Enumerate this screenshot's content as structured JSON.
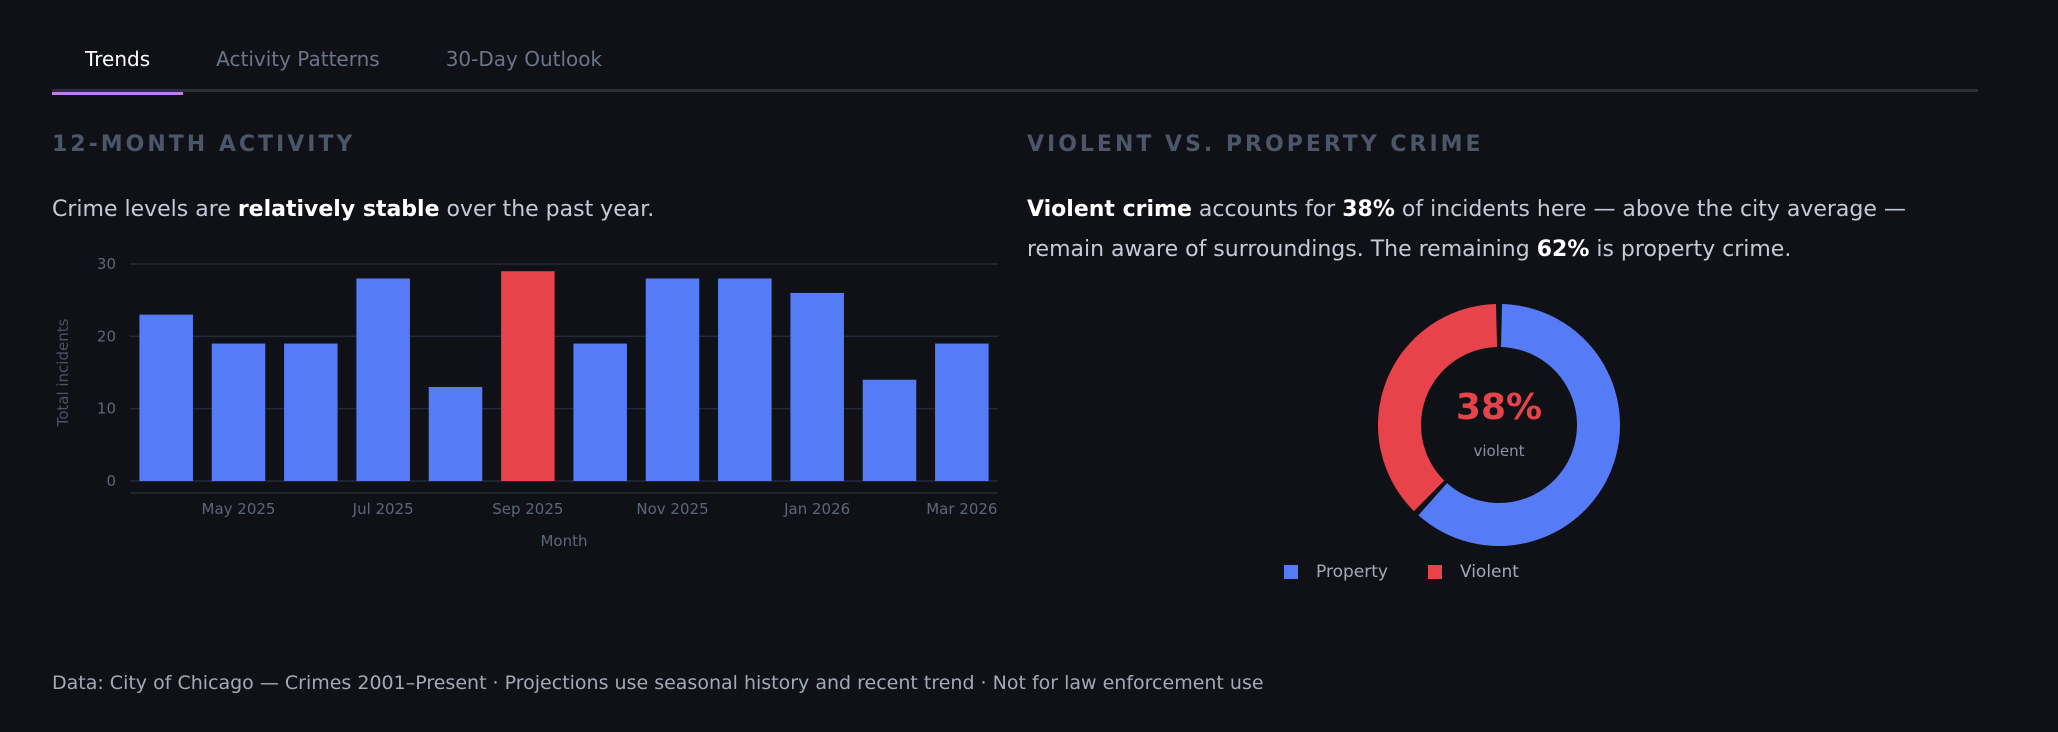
{
  "tabs": [
    {
      "label": "Trends",
      "active": true
    },
    {
      "label": "Activity Patterns",
      "active": false
    },
    {
      "label": "30-Day Outlook",
      "active": false
    }
  ],
  "left": {
    "title": "12-MONTH ACTIVITY",
    "desc_pre": "Crime levels are ",
    "desc_bold": "relatively stable",
    "desc_post": " over the past year."
  },
  "right": {
    "title": "VIOLENT VS. PROPERTY CRIME",
    "desc_b1": "Violent crime",
    "desc_t1": " accounts for ",
    "desc_b2": "38%",
    "desc_t2": " of incidents here — above the city average — remain aware of surroundings. The remaining ",
    "desc_b3": "62%",
    "desc_t3": " is property crime."
  },
  "colors": {
    "bar": "#557cf6",
    "highlight": "#e8434b",
    "grid": "#252a38",
    "axis_text": "#5d6678",
    "property": "#557cf6",
    "violent": "#e8434b"
  },
  "chart_data": [
    {
      "type": "bar",
      "x": [
        "2025-04",
        "2025-05",
        "2025-06",
        "2025-07",
        "2025-08",
        "2025-09",
        "2025-10",
        "2025-11",
        "2025-12",
        "2026-01",
        "2026-02",
        "2026-03"
      ],
      "values": [
        23,
        19,
        19,
        28,
        13,
        29,
        19,
        28,
        28,
        26,
        14,
        19
      ],
      "highlight_index": 5,
      "tick_labels": [
        "May 2025",
        "Jul 2025",
        "Sep 2025",
        "Nov 2025",
        "Jan 2026",
        "Mar 2026"
      ],
      "tick_positions": [
        "2025-05",
        "2025-07",
        "2025-09",
        "2025-11",
        "2026-01",
        "2026-03"
      ],
      "xlabel": "Month",
      "ylabel": "Total incidents",
      "ylim": [
        0,
        30
      ],
      "yticks": [
        0,
        10,
        20,
        30
      ],
      "grid": true
    },
    {
      "type": "pie",
      "donut": true,
      "categories": [
        "Property",
        "Violent"
      ],
      "values": [
        62,
        38
      ],
      "center_value": "38%",
      "center_label": "violent",
      "legend": "bottom"
    }
  ],
  "footer": "Data: City of Chicago — Crimes 2001–Present · Projections use seasonal history and recent trend · Not for law enforcement use"
}
